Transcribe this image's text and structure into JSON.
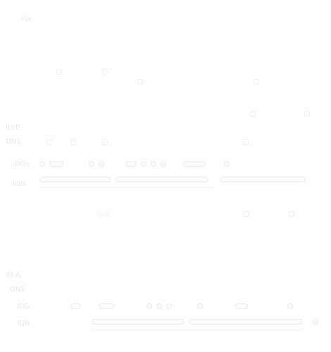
{
  "header": {
    "corner_text": "We"
  },
  "block_top": {
    "label_a": "ID:B",
    "label_b": "DNS",
    "row1_label": "IDGs",
    "row2_label": "IQN",
    "mid_text": "(ID)"
  },
  "block_bottom": {
    "label_a": "ID:A",
    "label_b": "DNS",
    "row1_label": "IDG",
    "row2_label": "IQN"
  }
}
